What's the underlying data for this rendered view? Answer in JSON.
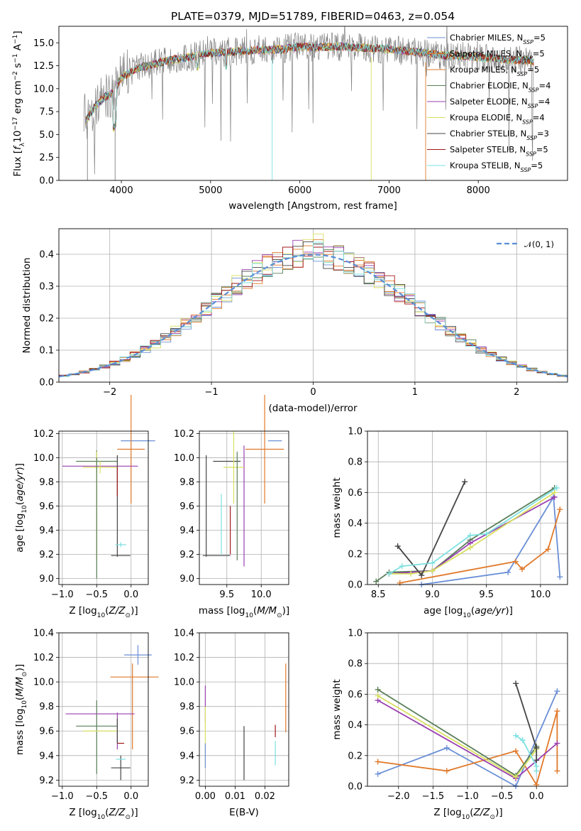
{
  "figure": {
    "title": "PLATE=0379, MJD=51789, FIBERID=0463, z=0.054"
  },
  "colors": {
    "data": "#808080",
    "models": [
      "#6a8fd6",
      "#e0792a",
      "#e07a28",
      "#5a7f5a",
      "#9a3fb0",
      "#d8e060",
      "#444444",
      "#a01818",
      "#7ee0e0"
    ]
  },
  "chart_data": [
    {
      "id": "spectrum",
      "type": "line",
      "title": "PLATE=0379, MJD=51789, FIBERID=0463, z=0.054",
      "xlabel": "wavelength [Angstrom, rest frame]",
      "ylabel": "Flux [f_λ 10^-17 erg cm^-2 s^-1 A^-1]",
      "xlim": [
        3300,
        9000
      ],
      "ylim": [
        0,
        16.8
      ],
      "xticks": [
        "4000",
        "5000",
        "6000",
        "7000",
        "8000"
      ],
      "yticks": [
        "0.0",
        "2.5",
        "5.0",
        "7.5",
        "10.0",
        "12.5",
        "15.0"
      ],
      "grid": false,
      "legend_position": "right",
      "series": [
        {
          "name": "Chabrier MILES, N_SSP=5"
        },
        {
          "name": "Salpeter MILES, N_SSP=5"
        },
        {
          "name": "Kroupa MILES, N_SSP=5"
        },
        {
          "name": "Chabrier ELODIE, N_SSP=4"
        },
        {
          "name": "Salpeter ELODIE, N_SSP=4"
        },
        {
          "name": "Kroupa ELODIE, N_SSP=4"
        },
        {
          "name": "Chabrier STELIB, N_SSP=3"
        },
        {
          "name": "Salpeter STELIB, N_SSP=5"
        },
        {
          "name": "Kroupa STELIB, N_SSP=5"
        }
      ],
      "continuum": {
        "x": [
          3600,
          3700,
          3800,
          3900,
          4000,
          4100,
          4200,
          4300,
          4400,
          4600,
          4800,
          5000,
          5200,
          5500,
          5800,
          6000,
          6200,
          6500,
          6800,
          7000,
          7200,
          7400,
          7600,
          7800,
          8000,
          8200,
          8400,
          8600
        ],
        "y": [
          6.5,
          8.0,
          9.0,
          9.5,
          11.2,
          11.8,
          12.3,
          12.5,
          12.8,
          13.2,
          13.5,
          13.9,
          14.0,
          14.2,
          14.3,
          14.6,
          14.5,
          14.6,
          14.4,
          14.3,
          14.1,
          13.9,
          13.6,
          13.6,
          13.4,
          13.3,
          13.1,
          13.0
        ]
      }
    },
    {
      "id": "residuals",
      "type": "area",
      "xlabel": "(data-model)/error",
      "ylabel": "Normed distribution",
      "xlim": [
        -2.5,
        2.5
      ],
      "ylim": [
        0,
        0.48
      ],
      "xticks": [
        "−2",
        "−1",
        "0",
        "1",
        "2"
      ],
      "yticks": [
        "0.0",
        "0.1",
        "0.2",
        "0.3",
        "0.4"
      ],
      "grid": true,
      "legend_position": "top-right",
      "legend": "𝒩(0, 1)",
      "bin_width": 0.1
    },
    {
      "id": "age-vs-Z",
      "type": "scatter",
      "xlabel": "Z [log10(Z/Z⊙)]",
      "ylabel": "age [log10(age/yr)]",
      "xlim": [
        -1.05,
        0.25
      ],
      "ylim": [
        8.95,
        10.22
      ],
      "xticks": [
        "−1.0",
        "−0.5",
        "0.0"
      ],
      "yticks": [
        "9.0",
        "9.2",
        "9.4",
        "9.6",
        "9.8",
        "10.0",
        "10.2"
      ],
      "grid": true
    },
    {
      "id": "age-vs-mass",
      "type": "scatter",
      "xlabel": "mass [log10(M/M⊙)]",
      "ylabel": "",
      "xlim": [
        9.1,
        10.4
      ],
      "ylim": [
        8.95,
        10.22
      ],
      "xticks": [
        "9.5",
        "10.0"
      ],
      "yticks": [
        "9.0",
        "9.2",
        "9.4",
        "9.6",
        "9.8",
        "10.0",
        "10.2"
      ],
      "grid": true
    },
    {
      "id": "weight-vs-age",
      "type": "line",
      "xlabel": "age [log10(age/yr)]",
      "ylabel": "mass weight",
      "xlim": [
        8.4,
        10.25
      ],
      "ylim": [
        0,
        1.0
      ],
      "xticks": [
        "8.5",
        "9.0",
        "9.5",
        "10.0"
      ],
      "yticks": [
        "0.0",
        "0.2",
        "0.4",
        "0.6",
        "0.8",
        "1.0"
      ],
      "grid": true,
      "series": [
        {
          "color_index": 0,
          "x": [
            8.9,
            9.7,
            10.12,
            10.18
          ],
          "y": [
            0.0,
            0.08,
            0.57,
            0.05
          ]
        },
        {
          "color_index": 1,
          "x": [
            8.7,
            9.77,
            9.83,
            10.07,
            10.18
          ],
          "y": [
            0.01,
            0.15,
            0.1,
            0.23,
            0.49
          ]
        },
        {
          "color_index": 3,
          "x": [
            8.48,
            8.6,
            9.0,
            9.35,
            10.13
          ],
          "y": [
            0.02,
            0.08,
            0.09,
            0.29,
            0.63
          ]
        },
        {
          "color_index": 4,
          "x": [
            8.6,
            9.0,
            9.35,
            10.13
          ],
          "y": [
            0.07,
            0.09,
            0.27,
            0.57
          ]
        },
        {
          "color_index": 5,
          "x": [
            8.6,
            8.8,
            9.0,
            9.35,
            10.13
          ],
          "y": [
            0.07,
            0.07,
            0.09,
            0.24,
            0.6
          ]
        },
        {
          "color_index": 6,
          "x": [
            8.68,
            8.9,
            9.3
          ],
          "y": [
            0.25,
            0.06,
            0.67
          ]
        },
        {
          "color_index": 8,
          "x": [
            8.6,
            8.72,
            9.0,
            9.35,
            9.5,
            10.15
          ],
          "y": [
            0.07,
            0.12,
            0.14,
            0.32,
            0.33,
            0.63
          ]
        },
        {
          "color_index": 9,
          "x": [
            9.05,
            9.7,
            10.08,
            10.17,
            10.18
          ],
          "y": [
            0.01,
            0.08,
            0.02,
            0.63,
            0.24
          ]
        }
      ]
    },
    {
      "id": "mass-vs-Z",
      "type": "scatter",
      "xlabel": "Z [log10(Z/Z⊙)]",
      "ylabel": "mass [log10(M/M⊙)]",
      "xlim": [
        -1.05,
        0.25
      ],
      "ylim": [
        9.15,
        10.4
      ],
      "xticks": [
        "−1.0",
        "−0.5",
        "0.0"
      ],
      "yticks": [
        "9.2",
        "9.4",
        "9.6",
        "9.8",
        "10.0",
        "10.2",
        "10.4"
      ],
      "grid": true
    },
    {
      "id": "mass-vs-EBV",
      "type": "scatter",
      "xlabel": "E(B-V)",
      "ylabel": "",
      "xlim": [
        -0.002,
        0.028
      ],
      "ylim": [
        9.15,
        10.4
      ],
      "xticks": [
        "0.00",
        "0.01",
        "0.02"
      ],
      "yticks": [
        "9.2",
        "9.4",
        "9.6",
        "9.8",
        "10.0",
        "10.2",
        "10.4"
      ],
      "grid": true
    },
    {
      "id": "weight-vs-Z",
      "type": "line",
      "xlabel": "Z [log10(Z/Z⊙)]",
      "ylabel": "mass weight",
      "xlim": [
        -2.45,
        0.45
      ],
      "ylim": [
        0,
        1.0
      ],
      "xticks": [
        "−2.0",
        "−1.5",
        "−1.0",
        "−0.5",
        "0.0"
      ],
      "yticks": [
        "0.0",
        "0.2",
        "0.4",
        "0.6",
        "0.8",
        "1.0"
      ],
      "grid": true,
      "series": [
        {
          "color_index": 0,
          "x": [
            -2.3,
            -1.3,
            -0.3,
            0.3
          ],
          "y": [
            0.08,
            0.25,
            0.0,
            0.62
          ]
        },
        {
          "color_index": 1,
          "x": [
            -2.3,
            -1.3,
            -0.3,
            0.0,
            0.3,
            0.3
          ],
          "y": [
            0.16,
            0.1,
            0.23,
            0.01,
            0.49,
            0.1
          ]
        },
        {
          "color_index": 3,
          "x": [
            -2.3,
            -0.3,
            0.0
          ],
          "y": [
            0.63,
            0.07,
            0.26
          ]
        },
        {
          "color_index": 4,
          "x": [
            -2.3,
            -0.3,
            0.3
          ],
          "y": [
            0.56,
            0.05,
            0.28
          ]
        },
        {
          "color_index": 5,
          "x": [
            -2.3,
            -0.3,
            0.0
          ],
          "y": [
            0.59,
            0.06,
            0.24
          ]
        },
        {
          "color_index": 6,
          "x": [
            -0.3,
            0.0,
            0.0
          ],
          "y": [
            0.67,
            0.25,
            0.17
          ]
        },
        {
          "color_index": 8,
          "x": [
            -0.3,
            -0.2,
            0.0,
            0.0
          ],
          "y": [
            0.33,
            0.3,
            0.13,
            0.1
          ]
        },
        {
          "color_index": 9,
          "x": [
            -1.3,
            0.3,
            0.3
          ],
          "y": [
            0.01,
            0.63,
            0.0
          ]
        }
      ]
    }
  ]
}
